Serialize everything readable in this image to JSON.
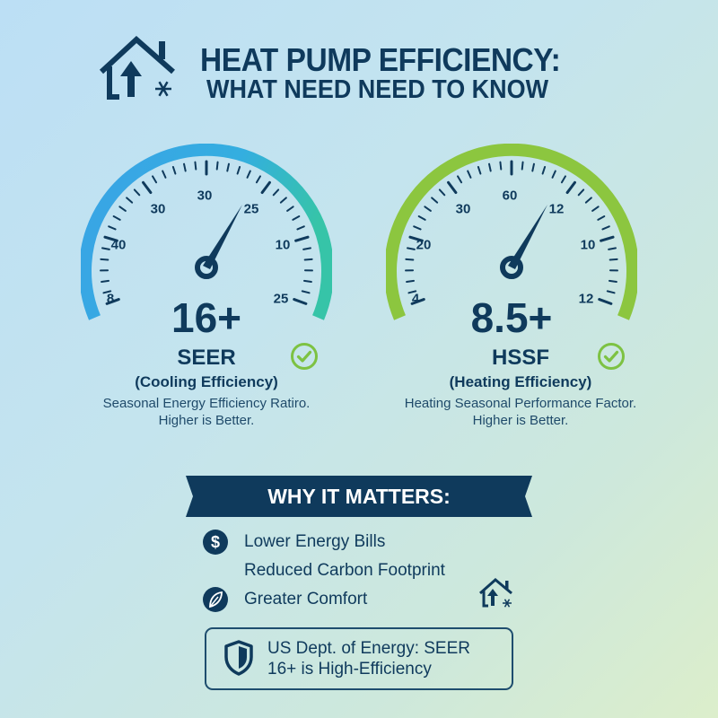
{
  "header": {
    "icon": "house-heat-pump-icon",
    "title": "HEAT PUMP EFFICIENCY:",
    "subtitle": "WHAT NEED NEED TO KNOW"
  },
  "gauges": [
    {
      "id": "seer",
      "value": "16+",
      "arc_colors": [
        "#3aa3e6",
        "#36c4a8"
      ],
      "tick_labels": [
        "8",
        "40",
        "30",
        "30",
        "25",
        "10",
        "25"
      ],
      "name": "SEER",
      "subtitle": "(Cooling Efficiency)",
      "description_line1": "Seasonal Energy Efficiency Ratiro.",
      "description_line2": "Higher is Better.",
      "check_icon": "check-circle-icon"
    },
    {
      "id": "hssf",
      "value": "8.5+",
      "arc_colors": [
        "#8cc63f",
        "#8cc63f"
      ],
      "tick_labels": [
        "4",
        "20",
        "30",
        "60",
        "12",
        "10",
        "12"
      ],
      "name": "HSSF",
      "subtitle": "(Heating Efficiency)",
      "description_line1": "Heating Seasonal Performance Factor.",
      "description_line2": "Higher is Better.",
      "check_icon": "check-circle-icon"
    }
  ],
  "banner": {
    "label": "WHY IT MATTERS:"
  },
  "benefits": [
    {
      "icon": "dollar-icon",
      "label": "Lower Energy Bills"
    },
    {
      "icon": "",
      "label": "Reduced Carbon Footprint"
    },
    {
      "icon": "leaf-icon",
      "label": "Greater Comfort"
    }
  ],
  "note": {
    "icon": "shield-icon",
    "line1": "US Dept. of Energy: SEER",
    "line2": "16+ is High-Efficiency"
  },
  "colors": {
    "navy": "#0f3a5c",
    "check_green": "#7dc242",
    "bg_top_left": "#bcdff5",
    "bg_bottom_right": "#dceecb"
  }
}
